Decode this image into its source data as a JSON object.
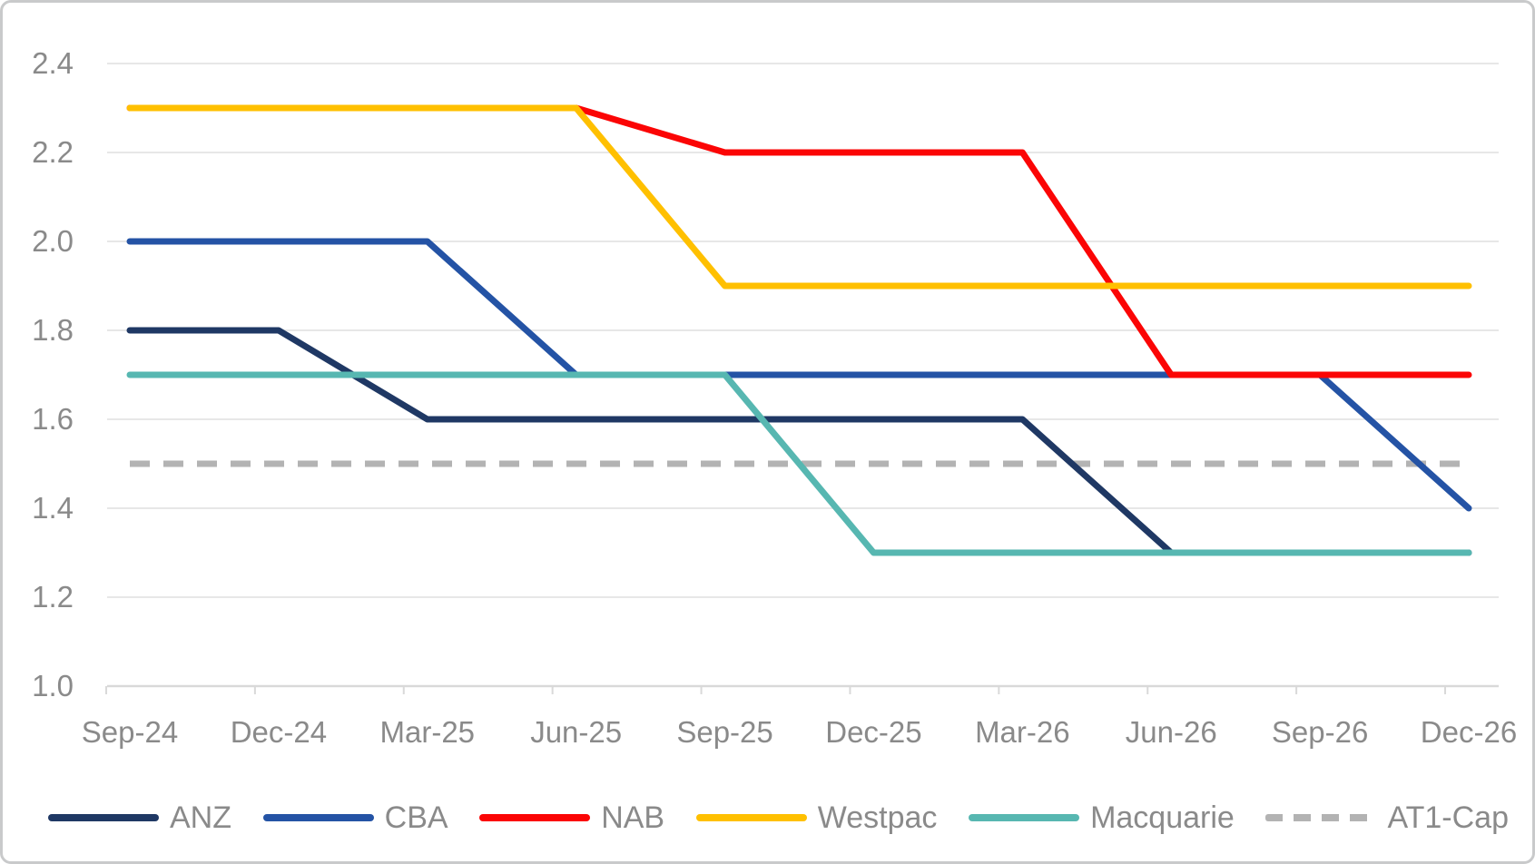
{
  "chart_data": {
    "type": "line",
    "categories": [
      "Sep-24",
      "Dec-24",
      "Mar-25",
      "Jun-25",
      "Sep-25",
      "Dec-25",
      "Mar-26",
      "Jun-26",
      "Sep-26",
      "Dec-26"
    ],
    "series": [
      {
        "name": "ANZ",
        "color": "#1F3864",
        "dashed": false,
        "values": [
          1.8,
          1.8,
          1.6,
          1.6,
          1.6,
          1.6,
          1.6,
          1.3,
          1.3,
          1.3
        ]
      },
      {
        "name": "CBA",
        "color": "#2453A5",
        "dashed": false,
        "values": [
          2.0,
          2.0,
          2.0,
          1.7,
          1.7,
          1.7,
          1.7,
          1.7,
          1.7,
          1.4
        ]
      },
      {
        "name": "NAB",
        "color": "#FB0505",
        "dashed": false,
        "values": [
          2.3,
          2.3,
          2.3,
          2.3,
          2.2,
          2.2,
          2.2,
          1.7,
          1.7,
          1.7
        ]
      },
      {
        "name": "Westpac",
        "color": "#FFC000",
        "dashed": false,
        "values": [
          2.3,
          2.3,
          2.3,
          2.3,
          1.9,
          1.9,
          1.9,
          1.9,
          1.9,
          1.9
        ]
      },
      {
        "name": "Macquarie",
        "color": "#57B7B1",
        "dashed": false,
        "values": [
          1.7,
          1.7,
          1.7,
          1.7,
          1.7,
          1.3,
          1.3,
          1.3,
          1.3,
          1.3
        ]
      },
      {
        "name": "AT1-Cap",
        "color": "#B3B3B3",
        "dashed": true,
        "values": [
          1.5,
          1.5,
          1.5,
          1.5,
          1.5,
          1.5,
          1.5,
          1.5,
          1.5,
          1.5
        ]
      }
    ],
    "title": "",
    "xlabel": "",
    "ylabel": "",
    "ylim": [
      1.0,
      2.4
    ],
    "ytick_step": 0.2,
    "ytick_labels": [
      "1.0",
      "1.2",
      "1.4",
      "1.6",
      "1.8",
      "2.0",
      "2.2",
      "2.4"
    ],
    "grid": "horizontal",
    "legend_position": "bottom"
  },
  "colors": {
    "gridline": "#E7E7E7",
    "axis_line": "#D9D9D9",
    "axis_text": "#8A8A8A",
    "card_border": "#C9CACB",
    "background": "#FFFFFF"
  }
}
